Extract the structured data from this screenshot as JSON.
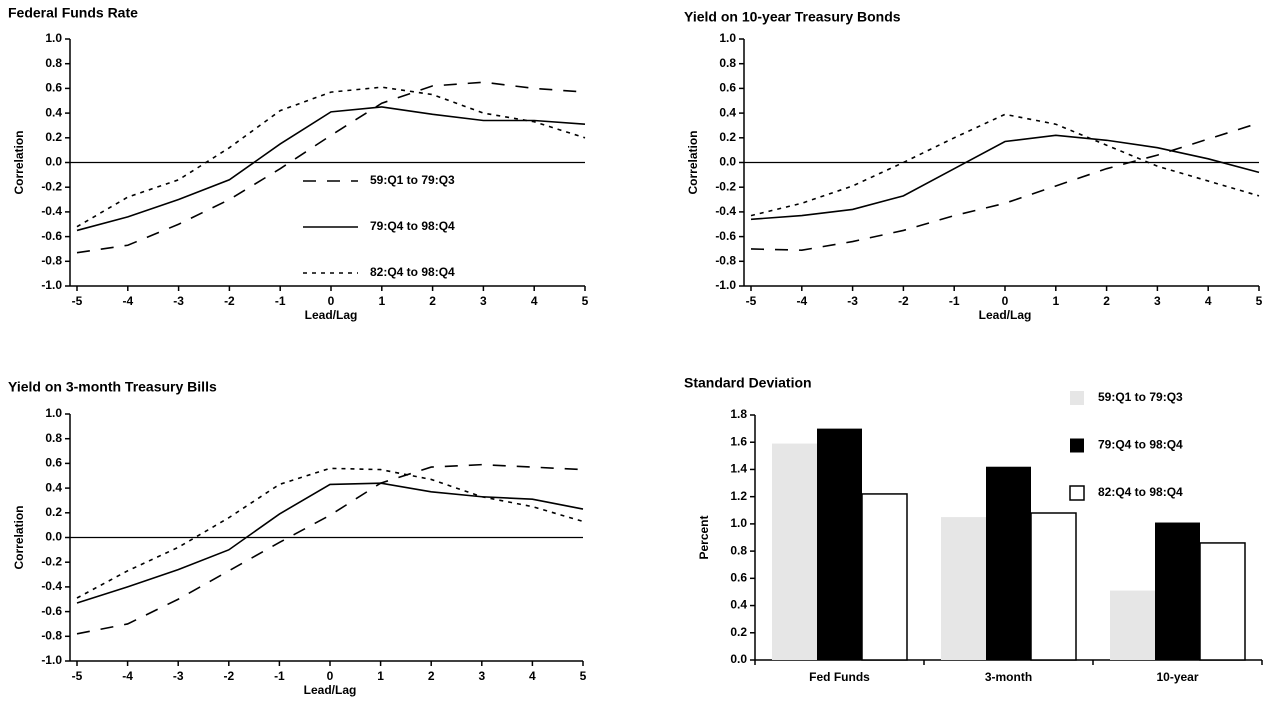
{
  "chart_data": [
    {
      "type": "line",
      "title": "Federal Funds Rate",
      "xlabel": "Lead/Lag",
      "ylabel": "Correlation",
      "x": [
        -5,
        -4,
        -3,
        -2,
        -1,
        0,
        1,
        2,
        3,
        4,
        5
      ],
      "xlim": [
        -5,
        5
      ],
      "xticks": [
        -5,
        -4,
        -3,
        -2,
        -1,
        0,
        1,
        2,
        3,
        4,
        5
      ],
      "ylim": [
        -1,
        1
      ],
      "yticks": [
        {
          "value": -1,
          "label": "-1.0"
        },
        -0.8,
        -0.6,
        -0.4,
        -0.2,
        {
          "value": 0,
          "label": "0.0"
        },
        0.2,
        0.4,
        0.6,
        0.8,
        {
          "value": 1,
          "label": "1.0"
        }
      ],
      "zero_line": true,
      "legend": "lower-center",
      "series": [
        {
          "name": "59:Q1 to 79:Q3",
          "color": "#000000",
          "style": "dashed",
          "values": [
            -0.73,
            -0.67,
            -0.5,
            -0.3,
            -0.05,
            0.22,
            0.48,
            0.62,
            0.65,
            0.6,
            0.57
          ]
        },
        {
          "name": "79:Q4 to 98:Q4",
          "color": "#000000",
          "style": "solid",
          "values": [
            -0.55,
            -0.44,
            -0.3,
            -0.14,
            0.15,
            0.41,
            0.45,
            0.39,
            0.34,
            0.34,
            0.31
          ]
        },
        {
          "name": "82:Q4 to 98:Q4",
          "color": "#000000",
          "style": "dotted",
          "values": [
            -0.52,
            -0.28,
            -0.14,
            0.12,
            0.42,
            0.57,
            0.61,
            0.55,
            0.4,
            0.33,
            0.2
          ]
        }
      ]
    },
    {
      "type": "line",
      "title": "Yield on 10-year Treasury Bonds",
      "xlabel": "Lead/Lag",
      "ylabel": "Correlation",
      "x": [
        -5,
        -4,
        -3,
        -2,
        -1,
        0,
        1,
        2,
        3,
        4,
        5
      ],
      "xlim": [
        -5,
        5
      ],
      "xticks": [
        -5,
        -4,
        -3,
        -2,
        -1,
        0,
        1,
        2,
        3,
        4,
        5
      ],
      "ylim": [
        -1,
        1
      ],
      "yticks": [
        {
          "value": -1,
          "label": "-1.0"
        },
        -0.8,
        -0.6,
        -0.4,
        -0.2,
        {
          "value": 0,
          "label": "0.0"
        },
        0.2,
        0.4,
        0.6,
        0.8,
        {
          "value": 1,
          "label": "1.0"
        }
      ],
      "zero_line": true,
      "series": [
        {
          "color": "#000000",
          "style": "dashed",
          "values": [
            -0.7,
            -0.71,
            -0.64,
            -0.55,
            -0.43,
            -0.33,
            -0.19,
            -0.05,
            0.06,
            0.19,
            0.32
          ]
        },
        {
          "color": "#000000",
          "style": "solid",
          "values": [
            -0.46,
            -0.43,
            -0.38,
            -0.27,
            -0.05,
            0.17,
            0.22,
            0.18,
            0.12,
            0.03,
            -0.08
          ]
        },
        {
          "color": "#000000",
          "style": "dotted",
          "values": [
            -0.43,
            -0.33,
            -0.19,
            0.0,
            0.2,
            0.39,
            0.31,
            0.14,
            -0.03,
            -0.15,
            -0.27
          ]
        }
      ]
    },
    {
      "type": "line",
      "title": "Yield on 3-month Treasury Bills",
      "xlabel": "Lead/Lag",
      "ylabel": "Correlation",
      "x": [
        -5,
        -4,
        -3,
        -2,
        -1,
        0,
        1,
        2,
        3,
        4,
        5
      ],
      "xlim": [
        -5,
        5
      ],
      "xticks": [
        -5,
        -4,
        -3,
        -2,
        -1,
        0,
        1,
        2,
        3,
        4,
        5
      ],
      "ylim": [
        -1,
        1
      ],
      "yticks": [
        {
          "value": -1,
          "label": "-1.0"
        },
        -0.8,
        -0.6,
        -0.4,
        -0.2,
        {
          "value": 0,
          "label": "0.0"
        },
        0.2,
        0.4,
        0.6,
        0.8,
        {
          "value": 1,
          "label": "1.0"
        }
      ],
      "zero_line": true,
      "series": [
        {
          "color": "#000000",
          "style": "dashed",
          "values": [
            -0.78,
            -0.7,
            -0.5,
            -0.27,
            -0.04,
            0.18,
            0.44,
            0.57,
            0.59,
            0.57,
            0.55
          ]
        },
        {
          "color": "#000000",
          "style": "solid",
          "values": [
            -0.53,
            -0.4,
            -0.26,
            -0.1,
            0.19,
            0.43,
            0.44,
            0.37,
            0.33,
            0.31,
            0.23
          ]
        },
        {
          "color": "#000000",
          "style": "dotted",
          "values": [
            -0.49,
            -0.27,
            -0.08,
            0.16,
            0.43,
            0.56,
            0.55,
            0.47,
            0.33,
            0.25,
            0.13
          ]
        }
      ]
    },
    {
      "type": "bar",
      "title": "Standard Deviation",
      "ylabel": "Percent",
      "categories": [
        "Fed Funds",
        "3-month",
        "10-year"
      ],
      "ylim": [
        0,
        1.8
      ],
      "yticks": [
        {
          "value": 0,
          "label": "0.0"
        },
        0.2,
        0.4,
        0.6,
        0.8,
        {
          "value": 1,
          "label": "1.0"
        },
        1.2,
        1.4,
        1.6,
        1.8
      ],
      "legend": "upper-right",
      "series": [
        {
          "name": "59:Q1 to 79:Q3",
          "color": "#e6e6e6",
          "values": [
            1.59,
            1.05,
            0.51
          ]
        },
        {
          "name": "79:Q4 to 98:Q4",
          "color": "#000000",
          "values": [
            1.7,
            1.42,
            1.01
          ]
        },
        {
          "name": "82:Q4 to 98:Q4",
          "color": "#ffffff",
          "values": [
            1.22,
            1.08,
            0.86
          ]
        }
      ]
    }
  ]
}
